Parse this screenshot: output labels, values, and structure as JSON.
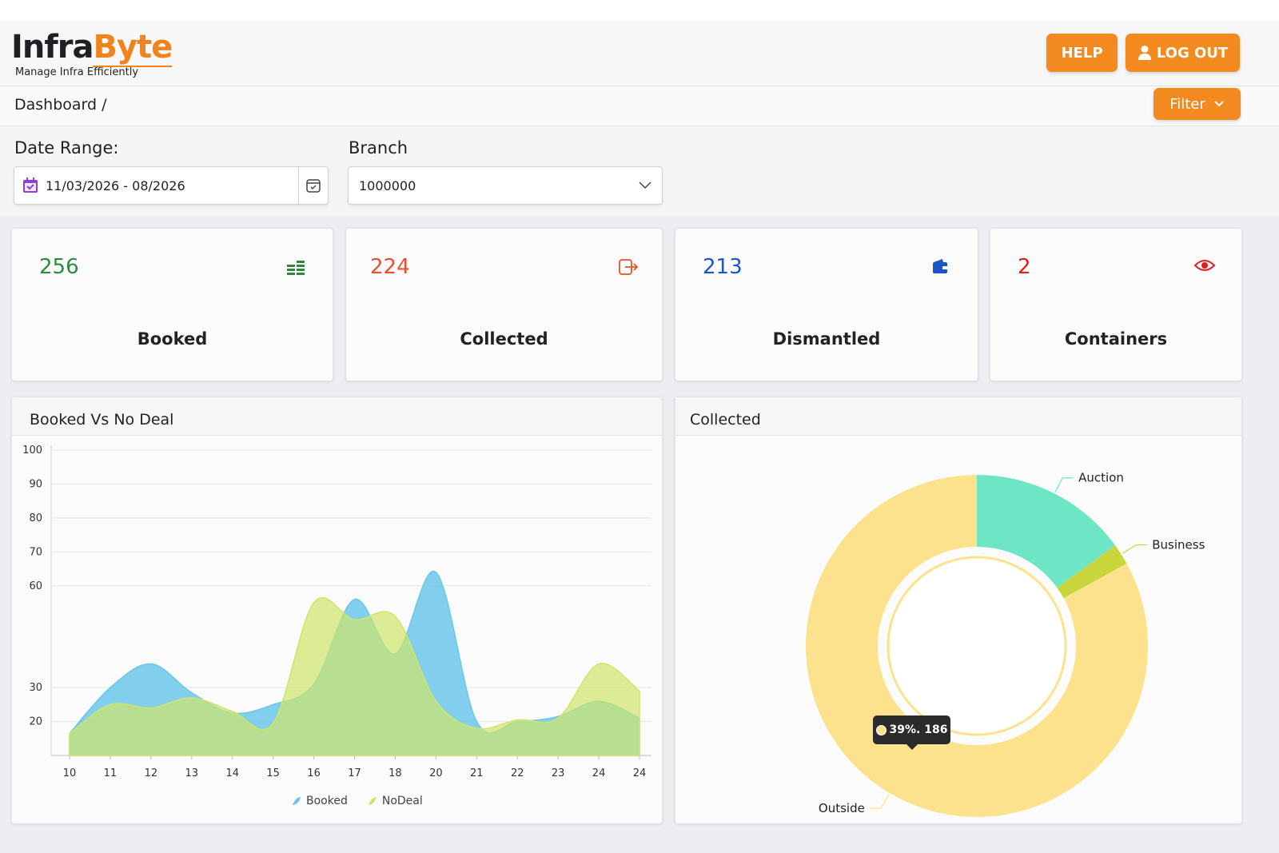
{
  "header": {
    "logo_dark": "Infra",
    "logo_accent": "Byte",
    "tagline": "Manage Infra Efficiently",
    "help_button": "HELP",
    "logout_button": "LOG OUT"
  },
  "breadcrumb": "Dashboard /",
  "filter_button": "Filter",
  "filters": {
    "date_label": "Date Range:",
    "date_value": "11/03/2026 - 08/2026",
    "branch_label": "Branch",
    "branch_value": "1000000"
  },
  "cards": [
    {
      "value": 256,
      "label": "Booked"
    },
    {
      "value": 224,
      "label": "Collected"
    },
    {
      "value": 213,
      "label": "Dismantled"
    },
    {
      "value": 2,
      "label": "Containers"
    }
  ],
  "chart_data": [
    {
      "type": "area",
      "title": "Booked Vs No Deal",
      "categories": [
        "10",
        "11",
        "12",
        "13",
        "14",
        "15",
        "16",
        "17",
        "18",
        "20",
        "21",
        "22",
        "23",
        "24",
        "24"
      ],
      "series": [
        {
          "name": "Booked",
          "color": "#6cc6ea",
          "values": [
            16.5,
            30,
            37,
            28.5,
            22.5,
            25,
            31,
            56,
            40,
            64,
            20,
            20,
            21.5,
            26,
            21
          ]
        },
        {
          "name": "NoDeal",
          "color": "#cfe56a",
          "values": [
            16.5,
            25,
            24,
            27,
            23,
            19.5,
            55,
            50,
            51,
            26,
            18,
            20.5,
            21,
            37,
            29
          ]
        }
      ],
      "ylim": [
        10,
        100
      ],
      "yticks": [
        20,
        30,
        60,
        70,
        80,
        90,
        100
      ],
      "grid": true,
      "legend": "bottom"
    },
    {
      "type": "donut",
      "title": "Collected",
      "categories": [
        "Auction",
        "Business",
        "Outside"
      ],
      "values": [
        15,
        2,
        83
      ],
      "colors": [
        "#6ee6c5",
        "#c8d63c",
        "#fde28d"
      ],
      "tooltip": "39%. 186"
    }
  ]
}
